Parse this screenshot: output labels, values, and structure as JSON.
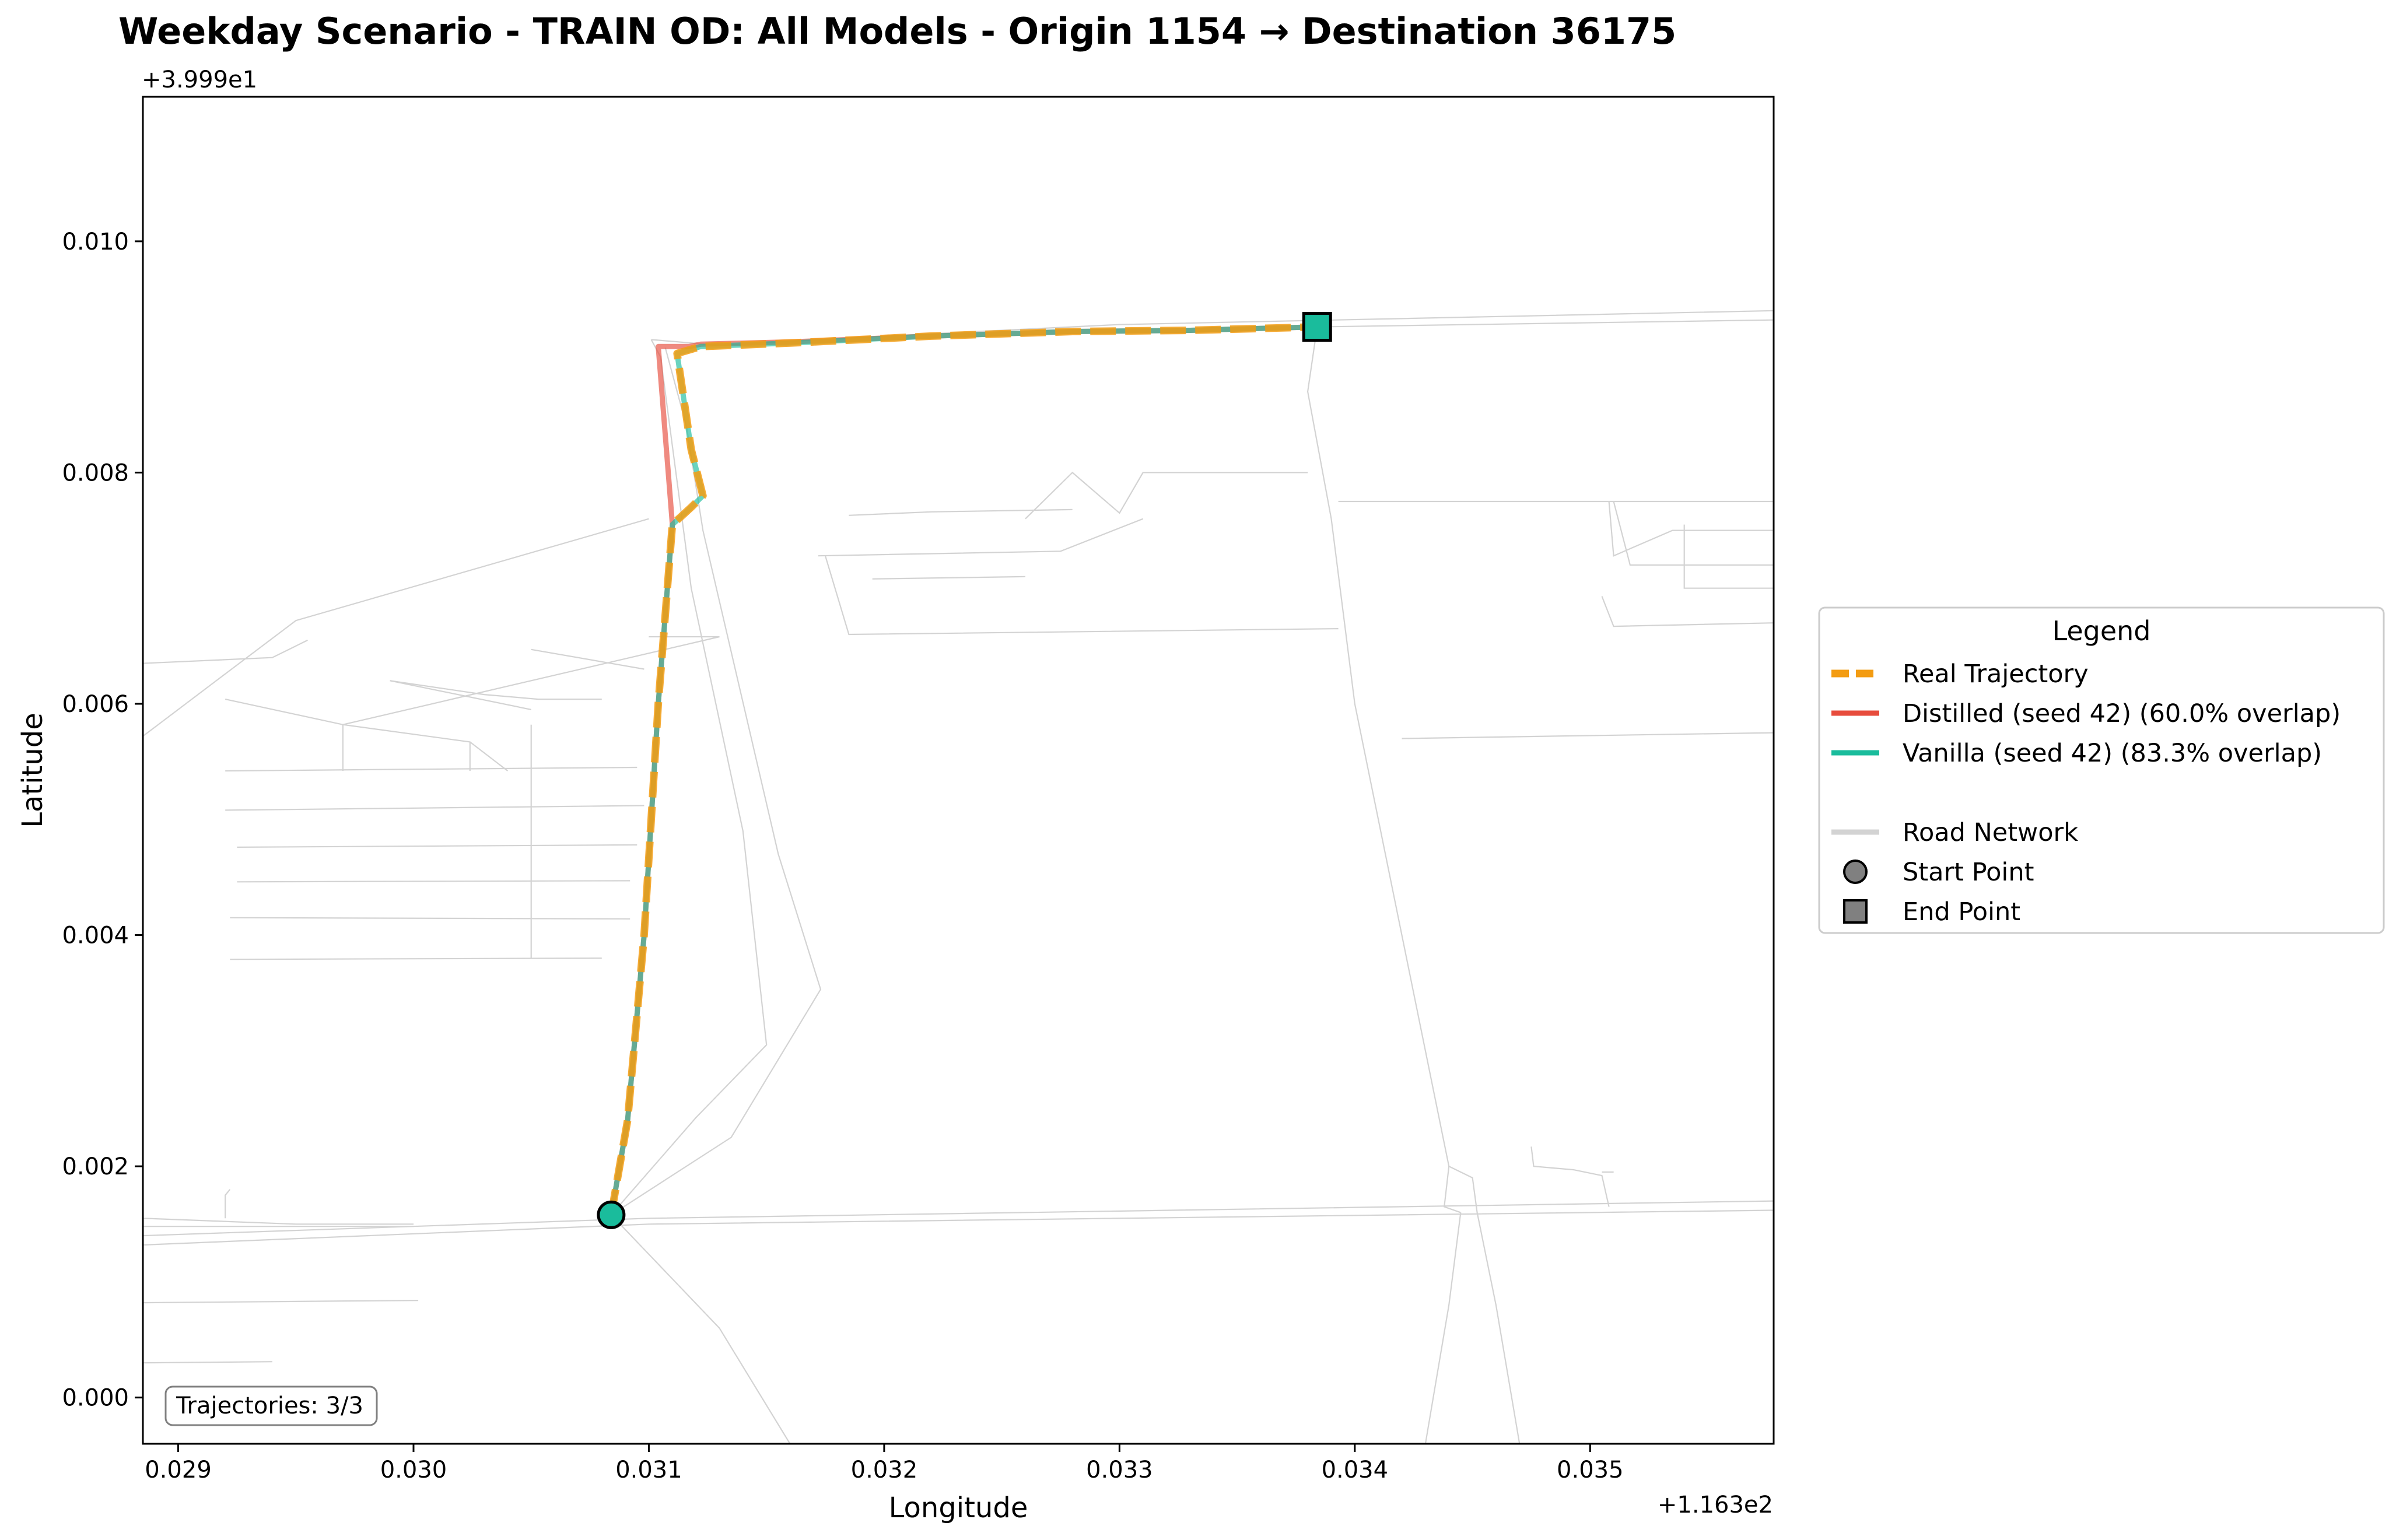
{
  "chart_data": {
    "type": "line",
    "title": "Weekday Scenario - TRAIN OD: All Models - Origin 1154 → Destination 36175",
    "xlabel": "Longitude",
    "ylabel": "Latitude",
    "x_offset_label": "+1.163e2",
    "y_offset_label": "+3.999e1",
    "xlim": [
      0.02885,
      0.03578
    ],
    "ylim": [
      -0.0004,
      0.01125
    ],
    "xticks": [
      0.029,
      0.03,
      0.031,
      0.032,
      0.033,
      0.034,
      0.035
    ],
    "xtick_labels": [
      "0.029",
      "0.030",
      "0.031",
      "0.032",
      "0.033",
      "0.034",
      "0.035"
    ],
    "yticks": [
      0.0,
      0.002,
      0.004,
      0.006,
      0.008,
      0.01
    ],
    "ytick_labels": [
      "0.000",
      "0.002",
      "0.004",
      "0.006",
      "0.008",
      "0.010"
    ],
    "grid": false,
    "legend_placement": "right, outside plot",
    "series": [
      {
        "name": "Distilled (seed 42) (60.0% overlap)",
        "color": "#e74c3c",
        "style": "solid",
        "x": [
          0.03084,
          0.03091,
          0.03098,
          0.03104,
          0.0311,
          0.03104,
          0.03117,
          0.03122,
          0.0316,
          0.0322,
          0.0328,
          0.0333,
          0.03384
        ],
        "y": [
          0.00158,
          0.0024,
          0.004,
          0.006,
          0.00755,
          0.00909,
          0.00909,
          0.00911,
          0.00913,
          0.00918,
          0.00922,
          0.00923,
          0.00926
        ]
      },
      {
        "name": "Vanilla (seed 42) (83.3% overlap)",
        "color": "#1abc9c",
        "style": "solid",
        "x": [
          0.03084,
          0.03091,
          0.03098,
          0.03104,
          0.0311,
          0.03118,
          0.03123,
          0.03118,
          0.03112,
          0.03122,
          0.0316,
          0.0322,
          0.0328,
          0.0333,
          0.03384
        ],
        "y": [
          0.00158,
          0.0024,
          0.004,
          0.006,
          0.00755,
          0.0077,
          0.0078,
          0.0082,
          0.00903,
          0.00909,
          0.00912,
          0.00918,
          0.00922,
          0.00923,
          0.00926
        ]
      },
      {
        "name": "Real Trajectory",
        "color": "#f39c12",
        "style": "dashed",
        "x": [
          0.03084,
          0.03091,
          0.03098,
          0.03104,
          0.0311,
          0.03118,
          0.03123,
          0.03118,
          0.03112,
          0.03122,
          0.0316,
          0.0322,
          0.0328,
          0.0333,
          0.03384
        ],
        "y": [
          0.00158,
          0.0024,
          0.004,
          0.006,
          0.00755,
          0.0077,
          0.0078,
          0.0082,
          0.00903,
          0.00909,
          0.00912,
          0.00918,
          0.00922,
          0.00923,
          0.00926
        ]
      }
    ],
    "start_point": {
      "x": 0.03084,
      "y": 0.00158,
      "color": "#1abc9c"
    },
    "end_point": {
      "x": 0.03384,
      "y": 0.00926,
      "color": "#1abc9c"
    },
    "road_network": {
      "color": "#d3d3d3",
      "lines": [
        [
          [
            0.02885,
            0.0014
          ],
          [
            0.031,
            0.00155
          ],
          [
            0.03578,
            0.0017
          ]
        ],
        [
          [
            0.02885,
            0.00132
          ],
          [
            0.031,
            0.0015
          ],
          [
            0.03578,
            0.00162
          ]
        ],
        [
          [
            0.02885,
            0.00155
          ],
          [
            0.0295,
            0.0015
          ],
          [
            0.03,
            0.0015
          ]
        ],
        [
          [
            0.02885,
            0.00148
          ],
          [
            0.03,
            0.00148
          ]
        ],
        [
          [
            0.02885,
            0.00082
          ],
          [
            0.03002,
            0.00084
          ]
        ],
        [
          [
            0.02885,
            0.0003
          ],
          [
            0.0294,
            0.00031
          ]
        ],
        [
          [
            0.0292,
            0.00155
          ],
          [
            0.0292,
            0.00175
          ],
          [
            0.02922,
            0.0018
          ]
        ],
        [
          [
            0.03084,
            0.00158
          ],
          [
            0.0313,
            0.0006
          ],
          [
            0.0316,
            -0.0004
          ]
        ],
        [
          [
            0.03084,
            0.00158
          ],
          [
            0.0312,
            0.00242
          ],
          [
            0.0315,
            0.00305
          ],
          [
            0.0314,
            0.0049
          ],
          [
            0.03118,
            0.007
          ],
          [
            0.03105,
            0.009
          ],
          [
            0.03101,
            0.00915
          ]
        ],
        [
          [
            0.03084,
            0.00158
          ],
          [
            0.03135,
            0.00225
          ],
          [
            0.03173,
            0.00353
          ],
          [
            0.03155,
            0.0047
          ],
          [
            0.03123,
            0.0075
          ],
          [
            0.03116,
            0.0084
          ],
          [
            0.03107,
            0.00908
          ]
        ],
        [
          [
            0.03101,
            0.00915
          ],
          [
            0.0313,
            0.0091
          ],
          [
            0.032,
            0.00918
          ],
          [
            0.033,
            0.00928
          ],
          [
            0.03578,
            0.0094
          ]
        ],
        [
          [
            0.03384,
            0.00926
          ],
          [
            0.03578,
            0.00932
          ]
        ],
        [
          [
            0.03384,
            0.00926
          ],
          [
            0.0338,
            0.0087
          ],
          [
            0.0339,
            0.0076
          ],
          [
            0.034,
            0.006
          ],
          [
            0.0342,
            0.004
          ],
          [
            0.0344,
            0.002
          ],
          [
            0.0345,
            0.0019
          ],
          [
            0.03452,
            0.0016
          ],
          [
            0.0346,
            0.0008
          ],
          [
            0.0347,
            -0.0004
          ]
        ],
        [
          [
            0.0344,
            0.002
          ],
          [
            0.03438,
            0.00165
          ],
          [
            0.03445,
            0.0016
          ]
        ],
        [
          [
            0.03445,
            0.0016
          ],
          [
            0.0344,
            0.0008
          ],
          [
            0.0343,
            -0.0004
          ]
        ],
        [
          [
            0.031,
            0.0076
          ],
          [
            0.0295,
            0.00672
          ],
          [
            0.02885,
            0.00572
          ]
        ],
        [
          [
            0.02885,
            0.00635
          ],
          [
            0.0294,
            0.0064
          ],
          [
            0.02955,
            0.00655
          ]
        ],
        [
          [
            0.0292,
            0.00604
          ],
          [
            0.0297,
            0.00582
          ],
          [
            0.03024,
            0.00567
          ],
          [
            0.0304,
            0.00542
          ]
        ],
        [
          [
            0.0297,
            0.00582
          ],
          [
            0.0297,
            0.00542
          ]
        ],
        [
          [
            0.0297,
            0.00582
          ],
          [
            0.0313,
            0.00658
          ],
          [
            0.031,
            0.00658
          ]
        ],
        [
          [
            0.03024,
            0.00567
          ],
          [
            0.03024,
            0.00542
          ]
        ],
        [
          [
            0.0299,
            0.0062
          ],
          [
            0.0303,
            0.00608
          ],
          [
            0.03053,
            0.00604
          ],
          [
            0.0308,
            0.00604
          ]
        ],
        [
          [
            0.0299,
            0.0062
          ],
          [
            0.0305,
            0.00595
          ]
        ],
        [
          [
            0.0305,
            0.00647
          ],
          [
            0.03098,
            0.0063
          ]
        ],
        [
          [
            0.0292,
            0.00542
          ],
          [
            0.03095,
            0.00545
          ]
        ],
        [
          [
            0.0292,
            0.00508
          ],
          [
            0.03098,
            0.00512
          ]
        ],
        [
          [
            0.02925,
            0.00476
          ],
          [
            0.03095,
            0.00478
          ]
        ],
        [
          [
            0.02925,
            0.00446
          ],
          [
            0.03092,
            0.00447
          ]
        ],
        [
          [
            0.02922,
            0.00415
          ],
          [
            0.03092,
            0.00414
          ]
        ],
        [
          [
            0.02922,
            0.00379
          ],
          [
            0.0308,
            0.0038
          ]
        ],
        [
          [
            0.0305,
            0.00582
          ],
          [
            0.0305,
            0.0038
          ]
        ],
        [
          [
            0.03185,
            0.00763
          ],
          [
            0.0322,
            0.00766
          ],
          [
            0.0328,
            0.00768
          ]
        ],
        [
          [
            0.03195,
            0.00708
          ],
          [
            0.0326,
            0.0071
          ]
        ],
        [
          [
            0.0326,
            0.0076
          ],
          [
            0.0328,
            0.008
          ],
          [
            0.033,
            0.00765
          ],
          [
            0.0331,
            0.008
          ],
          [
            0.0338,
            0.008
          ]
        ],
        [
          [
            0.03172,
            0.00728
          ],
          [
            0.03275,
            0.00732
          ],
          [
            0.0331,
            0.0076
          ]
        ],
        [
          [
            0.03175,
            0.00728
          ],
          [
            0.03185,
            0.0066
          ],
          [
            0.03393,
            0.00665
          ]
        ],
        [
          [
            0.03393,
            0.00775
          ],
          [
            0.0351,
            0.00775
          ],
          [
            0.03578,
            0.00775
          ]
        ],
        [
          [
            0.0351,
            0.00775
          ],
          [
            0.03517,
            0.0072
          ],
          [
            0.03578,
            0.0072
          ]
        ],
        [
          [
            0.03508,
            0.00775
          ],
          [
            0.0351,
            0.00728
          ],
          [
            0.03535,
            0.0075
          ],
          [
            0.03578,
            0.0075
          ]
        ],
        [
          [
            0.0354,
            0.00755
          ],
          [
            0.0354,
            0.007
          ],
          [
            0.03578,
            0.007
          ]
        ],
        [
          [
            0.0342,
            0.0057
          ],
          [
            0.03578,
            0.00575
          ]
        ],
        [
          [
            0.03505,
            0.00693
          ],
          [
            0.0351,
            0.00667
          ],
          [
            0.03578,
            0.0067
          ]
        ],
        [
          [
            0.03475,
            0.00217
          ],
          [
            0.03476,
            0.002
          ],
          [
            0.03493,
            0.00197
          ],
          [
            0.03505,
            0.00192
          ],
          [
            0.03508,
            0.00165
          ]
        ],
        [
          [
            0.03505,
            0.00195
          ],
          [
            0.0351,
            0.00195
          ]
        ],
        [
          [
            0.0346,
            -0.0004
          ],
          [
            0.03578,
            -0.0004
          ]
        ]
      ]
    },
    "legend": {
      "title": "Legend",
      "entries": [
        {
          "label": "Real Trajectory",
          "kind": "dashed-line",
          "color": "#f39c12"
        },
        {
          "label": "Distilled (seed 42) (60.0% overlap)",
          "kind": "line",
          "color": "#e74c3c"
        },
        {
          "label": "Vanilla (seed 42) (83.3% overlap)",
          "kind": "line",
          "color": "#1abc9c"
        },
        {
          "label": "",
          "kind": "spacer",
          "color": ""
        },
        {
          "label": "Road Network",
          "kind": "line",
          "color": "#d3d3d3"
        },
        {
          "label": "Start Point",
          "kind": "circle",
          "color": "#808080"
        },
        {
          "label": "End Point",
          "kind": "square",
          "color": "#808080"
        }
      ]
    },
    "annotation": "Trajectories: 3/3"
  }
}
